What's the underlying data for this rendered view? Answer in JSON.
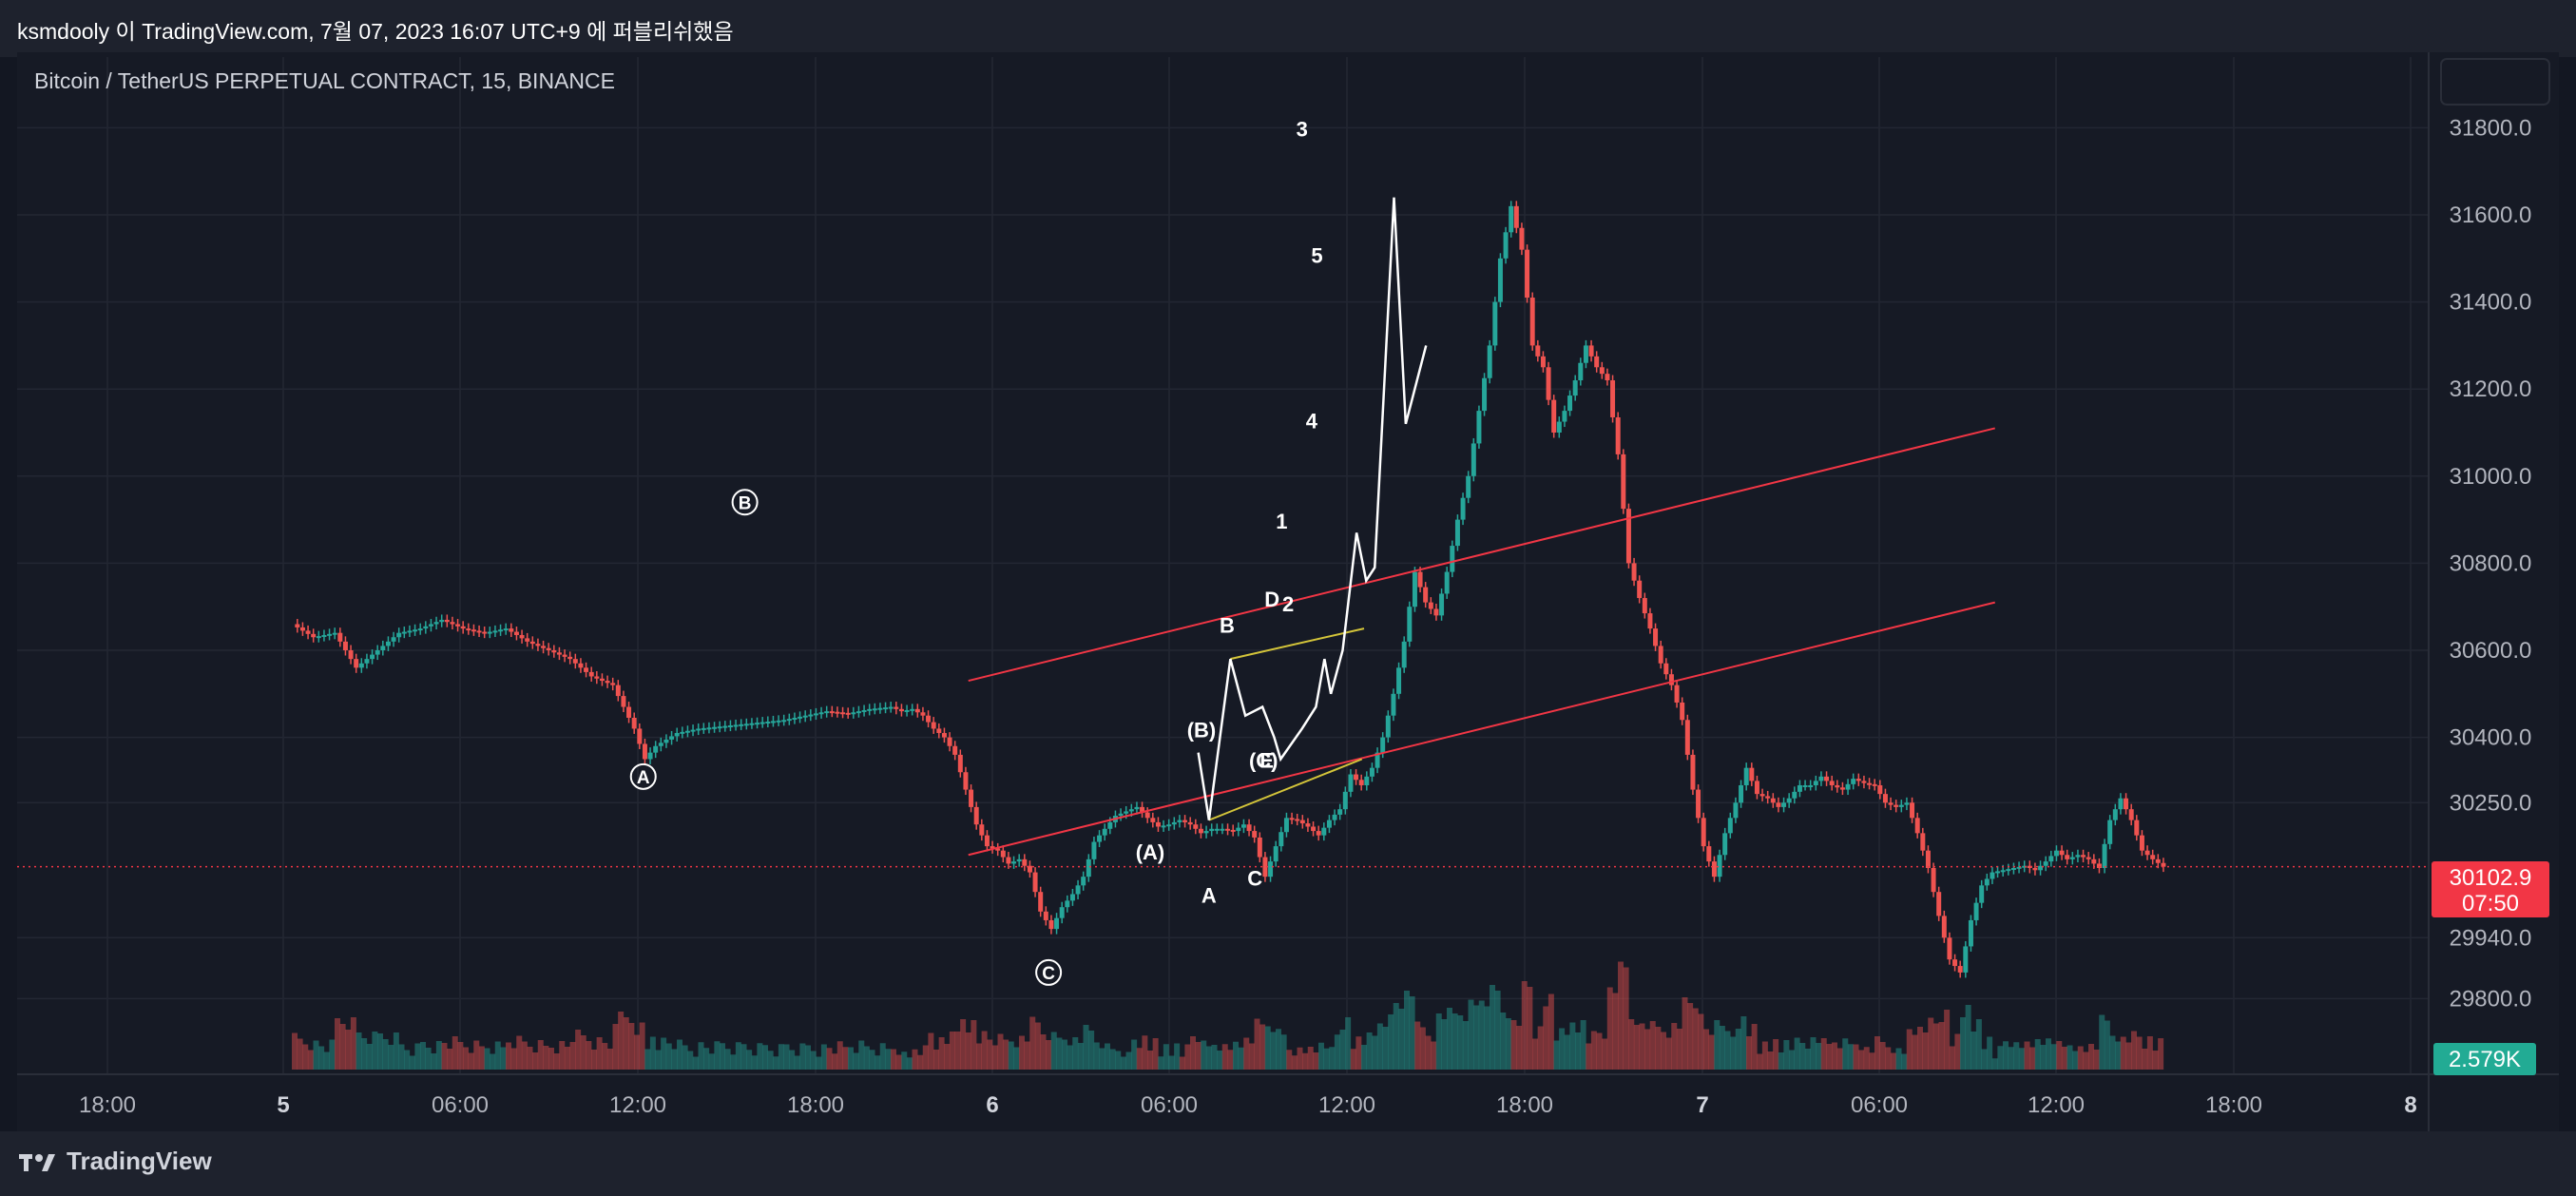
{
  "header": {
    "caption": "ksmdooly 이 TradingView.com, 7월 07, 2023 16:07 UTC+9 에 퍼블리쉬했음"
  },
  "footer": {
    "brand": "TradingView"
  },
  "chart_data": {
    "type": "candlestick",
    "title": "Bitcoin / TetherUS PERPETUAL CONTRACT, 15, BINANCE",
    "y_axis": {
      "ticks": [
        31800.0,
        31600.0,
        31400.0,
        31200.0,
        31000.0,
        30800.0,
        30600.0,
        30400.0,
        30250.0,
        29940.0,
        29800.0
      ],
      "tick_labels": [
        "31800.0",
        "31600.0",
        "31400.0",
        "31200.0",
        "31000.0",
        "30800.0",
        "30600.0",
        "30400.0",
        "30250.0",
        "29940.0",
        "29800.0"
      ]
    },
    "x_axis": {
      "ticks": [
        "18:00",
        "5",
        "06:00",
        "12:00",
        "18:00",
        "6",
        "06:00",
        "12:00",
        "18:00",
        "7",
        "06:00",
        "12:00",
        "18:00",
        "8"
      ],
      "day_marks": [
        "5",
        "6",
        "7",
        "8"
      ]
    },
    "current_price": {
      "value": "30102.9",
      "countdown": "07:50",
      "color": "#f23645"
    },
    "volume_tag": {
      "value": "2.579K",
      "color": "#22ab94"
    },
    "colors": {
      "up": "#26a69a",
      "down": "#ef5350",
      "channel": "#f23645",
      "triangle": "#d4c53a",
      "wave": "#ffffff",
      "background": "#161a25"
    },
    "price_path": [
      [
        -56,
        30660
      ],
      [
        -54,
        30630
      ],
      [
        -52,
        30640
      ],
      [
        -50,
        30560
      ],
      [
        -48,
        30600
      ],
      [
        -46,
        30640
      ],
      [
        -44,
        30650
      ],
      [
        -42,
        30670
      ],
      [
        -40,
        30650
      ],
      [
        -38,
        30640
      ],
      [
        -36,
        30650
      ],
      [
        -34,
        30620
      ],
      [
        -32,
        30600
      ],
      [
        -30,
        30580
      ],
      [
        -28,
        30540
      ],
      [
        -26,
        30520
      ],
      [
        -24,
        30420
      ],
      [
        -23,
        30350
      ],
      [
        -22,
        30380
      ],
      [
        -20,
        30410
      ],
      [
        -18,
        30420
      ],
      [
        -16,
        30425
      ],
      [
        -14,
        30430
      ],
      [
        -12,
        30435
      ],
      [
        -10,
        30440
      ],
      [
        -8,
        30450
      ],
      [
        -6,
        30460
      ],
      [
        -4,
        30455
      ],
      [
        -2,
        30465
      ],
      [
        0,
        30470
      ],
      [
        1,
        30460
      ],
      [
        2,
        30465
      ],
      [
        3,
        30450
      ],
      [
        4,
        30420
      ],
      [
        5,
        30400
      ],
      [
        6,
        30360
      ],
      [
        7,
        30280
      ],
      [
        8,
        30200
      ],
      [
        9,
        30150
      ],
      [
        10,
        30140
      ],
      [
        11,
        30110
      ],
      [
        12,
        30120
      ],
      [
        13,
        30090
      ],
      [
        14,
        30000
      ],
      [
        15,
        29960
      ],
      [
        16,
        30010
      ],
      [
        17,
        30040
      ],
      [
        18,
        30080
      ],
      [
        19,
        30160
      ],
      [
        20,
        30190
      ],
      [
        21,
        30220
      ],
      [
        22,
        30230
      ],
      [
        23,
        30240
      ],
      [
        24,
        30215
      ],
      [
        25,
        30195
      ],
      [
        26,
        30200
      ],
      [
        27,
        30210
      ],
      [
        28,
        30200
      ],
      [
        29,
        30180
      ],
      [
        30,
        30190
      ],
      [
        31,
        30190
      ],
      [
        32,
        30185
      ],
      [
        33,
        30200
      ],
      [
        34,
        30170
      ],
      [
        35,
        30080
      ],
      [
        36,
        30150
      ],
      [
        37,
        30215
      ],
      [
        38,
        30210
      ],
      [
        39,
        30195
      ],
      [
        40,
        30175
      ],
      [
        41,
        30210
      ],
      [
        42,
        30235
      ],
      [
        43,
        30315
      ],
      [
        44,
        30290
      ],
      [
        45,
        30330
      ],
      [
        46,
        30400
      ],
      [
        47,
        30500
      ],
      [
        48,
        30620
      ],
      [
        49,
        30780
      ],
      [
        50,
        30710
      ],
      [
        51,
        30680
      ],
      [
        52,
        30780
      ],
      [
        53,
        30900
      ],
      [
        54,
        31000
      ],
      [
        55,
        31150
      ],
      [
        56,
        31300
      ],
      [
        57,
        31500
      ],
      [
        58,
        31620
      ],
      [
        59,
        31520
      ],
      [
        60,
        31300
      ],
      [
        61,
        31250
      ],
      [
        62,
        31100
      ],
      [
        63,
        31150
      ],
      [
        64,
        31220
      ],
      [
        65,
        31300
      ],
      [
        66,
        31250
      ],
      [
        67,
        31220
      ],
      [
        68,
        31050
      ],
      [
        69,
        30800
      ],
      [
        70,
        30720
      ],
      [
        71,
        30650
      ],
      [
        72,
        30570
      ],
      [
        73,
        30520
      ],
      [
        74,
        30440
      ],
      [
        75,
        30280
      ],
      [
        76,
        30150
      ],
      [
        77,
        30080
      ],
      [
        78,
        30180
      ],
      [
        79,
        30250
      ],
      [
        80,
        30330
      ],
      [
        81,
        30270
      ],
      [
        82,
        30260
      ],
      [
        83,
        30240
      ],
      [
        84,
        30260
      ],
      [
        85,
        30290
      ],
      [
        86,
        30290
      ],
      [
        87,
        30310
      ],
      [
        88,
        30290
      ],
      [
        89,
        30280
      ],
      [
        90,
        30305
      ],
      [
        91,
        30295
      ],
      [
        92,
        30290
      ],
      [
        93,
        30250
      ],
      [
        94,
        30240
      ],
      [
        95,
        30250
      ],
      [
        96,
        30180
      ],
      [
        97,
        30100
      ],
      [
        98,
        29990
      ],
      [
        99,
        29890
      ],
      [
        100,
        29860
      ],
      [
        101,
        29980
      ],
      [
        102,
        30060
      ],
      [
        103,
        30090
      ],
      [
        104,
        30095
      ],
      [
        105,
        30100
      ],
      [
        106,
        30105
      ],
      [
        107,
        30095
      ],
      [
        108,
        30115
      ],
      [
        109,
        30140
      ],
      [
        110,
        30120
      ],
      [
        111,
        30130
      ],
      [
        112,
        30120
      ],
      [
        113,
        30100
      ],
      [
        114,
        30210
      ],
      [
        115,
        30260
      ],
      [
        116,
        30210
      ],
      [
        117,
        30140
      ],
      [
        118,
        30120
      ],
      [
        119,
        30103
      ]
    ],
    "channel_lines": [
      {
        "name": "upper",
        "start": [
          7,
          30530
        ],
        "end": [
          103,
          31110
        ]
      },
      {
        "name": "lower",
        "start": [
          7,
          30130
        ],
        "end": [
          103,
          30710
        ]
      }
    ],
    "triangle_lines": [
      {
        "start": [
          31.5,
          30580
        ],
        "end": [
          44,
          30650
        ]
      },
      {
        "start": [
          29.5,
          30210
        ],
        "end": [
          43.8,
          30350
        ]
      }
    ],
    "wave_path": [
      [
        28.5,
        30365
      ],
      [
        29.5,
        30210
      ],
      [
        31.5,
        30580
      ],
      [
        32.9,
        30450
      ],
      [
        34.5,
        30470
      ],
      [
        35.6,
        30400
      ],
      [
        36.2,
        30350
      ],
      [
        38.2,
        30420
      ],
      [
        39.5,
        30470
      ],
      [
        40.3,
        30580
      ],
      [
        40.9,
        30500
      ],
      [
        42,
        30600
      ],
      [
        43.3,
        30870
      ],
      [
        44.2,
        30760
      ],
      [
        45,
        30790
      ],
      [
        46.8,
        31640
      ],
      [
        47.9,
        31120
      ],
      [
        49.8,
        31300
      ]
    ],
    "wave_labels": [
      {
        "text": "(B)",
        "pos": [
          28.8,
          30400
        ]
      },
      {
        "text": "(A)",
        "pos": [
          24,
          30120
        ]
      },
      {
        "text": "B",
        "pos": [
          31.2,
          30640
        ]
      },
      {
        "text": "A",
        "pos": [
          29.5,
          30020
        ]
      },
      {
        "text": "C",
        "pos": [
          33.8,
          30060
        ]
      },
      {
        "text": "D",
        "pos": [
          35.4,
          30700
        ]
      },
      {
        "text": "(C)",
        "pos": [
          34.6,
          30330
        ]
      },
      {
        "text": "E",
        "pos": [
          34.9,
          30330
        ]
      },
      {
        "text": "1",
        "pos": [
          36.3,
          30880
        ]
      },
      {
        "text": "2",
        "pos": [
          36.9,
          30690
        ]
      },
      {
        "text": "3",
        "pos": [
          38.2,
          31780
        ]
      },
      {
        "text": "4",
        "pos": [
          39.1,
          31110
        ]
      },
      {
        "text": "5",
        "pos": [
          39.6,
          31490
        ]
      }
    ],
    "circle_labels": [
      {
        "text": "A",
        "pos": [
          -23.4,
          30310
        ]
      },
      {
        "text": "B",
        "pos": [
          -13.9,
          30940
        ]
      },
      {
        "text": "C",
        "pos": [
          14.5,
          29860
        ]
      }
    ]
  }
}
